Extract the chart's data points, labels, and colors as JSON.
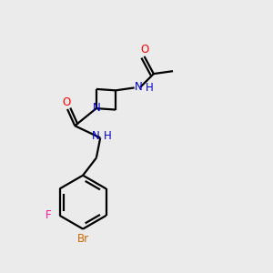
{
  "bg_color": "#ebebeb",
  "bond_color": "#000000",
  "atom_colors": {
    "O": "#ff0000",
    "N": "#0000cc",
    "Br": "#cc6600",
    "F": "#ff1493",
    "C": "#000000",
    "H": "#0000cc"
  }
}
